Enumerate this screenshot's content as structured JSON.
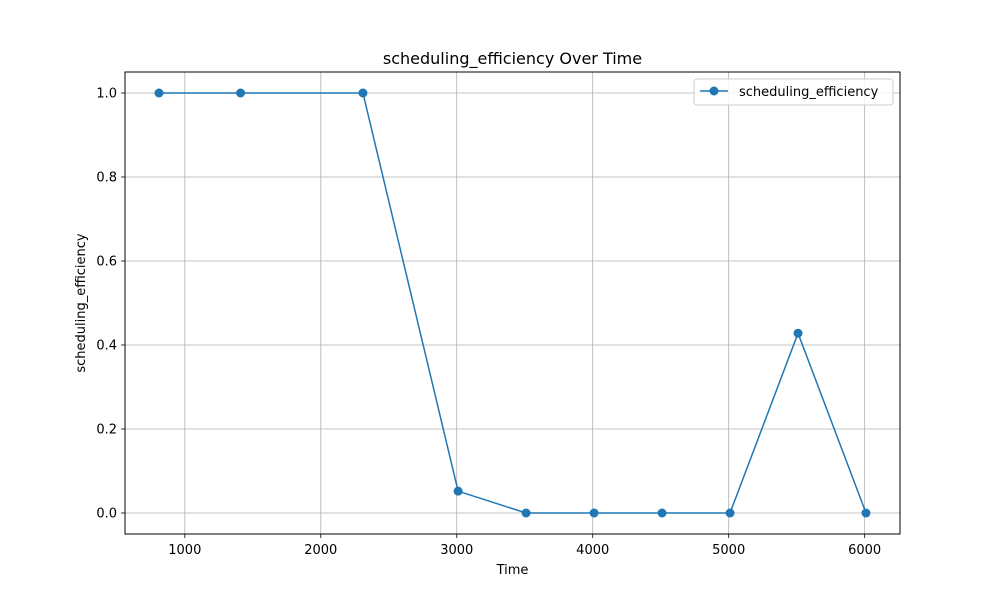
{
  "chart_data": {
    "type": "line",
    "title": "scheduling_efficiency Over Time",
    "xlabel": "Time",
    "ylabel": "scheduling_efficiency",
    "xlim": [
      560,
      6260
    ],
    "ylim": [
      -0.05,
      1.05
    ],
    "xticks": [
      1000,
      2000,
      3000,
      4000,
      5000,
      6000
    ],
    "yticks": [
      "0.0",
      "0.2",
      "0.4",
      "0.6",
      "0.8",
      "1.0"
    ],
    "grid": true,
    "legend_position": "top-right",
    "color": "#1f77b4",
    "series": [
      {
        "name": "scheduling_efficiency",
        "x": [
          810,
          1410,
          2310,
          3010,
          3510,
          4010,
          4510,
          5010,
          5510,
          6010
        ],
        "y": [
          1.0,
          1.0,
          1.0,
          0.052,
          0.0,
          0.0,
          0.0,
          0.0,
          0.428,
          0.0
        ]
      }
    ]
  }
}
